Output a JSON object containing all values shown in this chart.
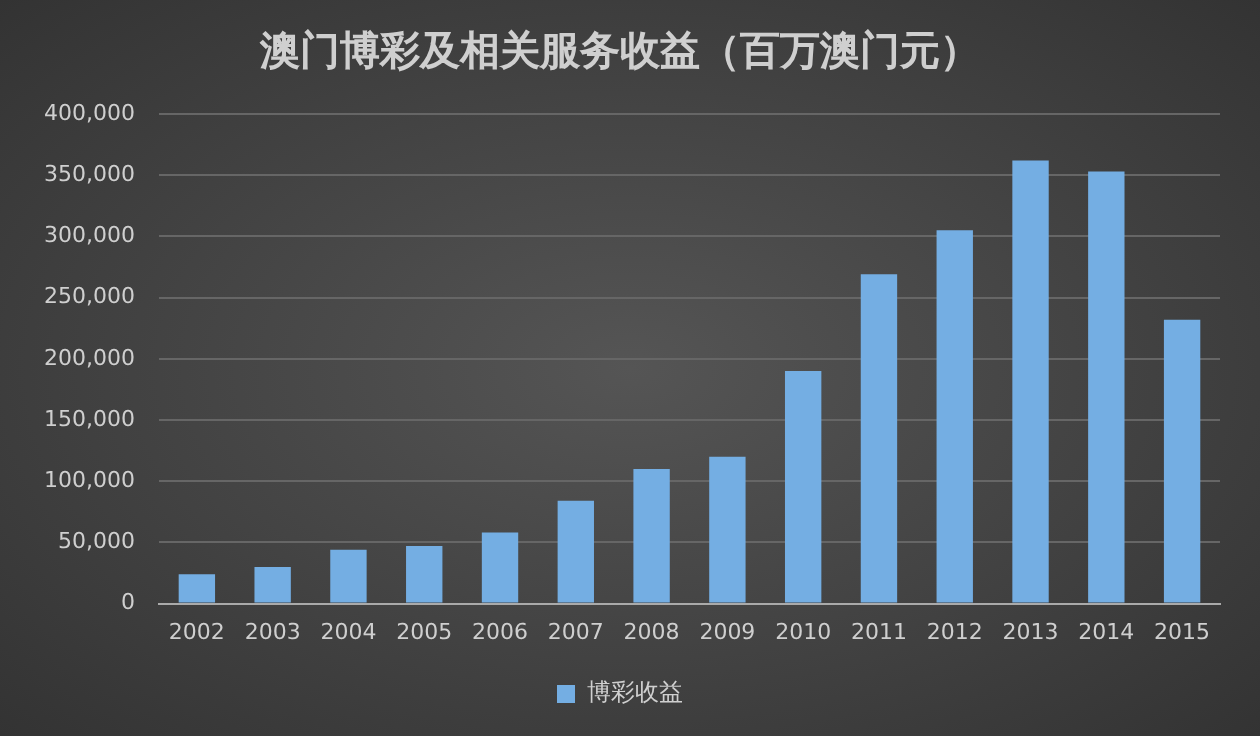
{
  "chart_data": {
    "type": "bar",
    "title": "澳门博彩及相关服务收益（百万澳门元）",
    "categories": [
      "2002",
      "2003",
      "2004",
      "2005",
      "2006",
      "2007",
      "2008",
      "2009",
      "2010",
      "2011",
      "2012",
      "2013",
      "2014",
      "2015"
    ],
    "series": [
      {
        "name": "博彩收益",
        "color": "#74aee3",
        "values": [
          24000,
          30000,
          44000,
          47000,
          58000,
          84000,
          110000,
          120000,
          190000,
          269000,
          305000,
          362000,
          353000,
          232000
        ]
      }
    ],
    "ylim": [
      0,
      400000
    ],
    "yticks": [
      {
        "value": 0,
        "label": "0"
      },
      {
        "value": 50000,
        "label": "50,000"
      },
      {
        "value": 100000,
        "label": "100,000"
      },
      {
        "value": 150000,
        "label": "150,000"
      },
      {
        "value": 200000,
        "label": "200,000"
      },
      {
        "value": 250000,
        "label": "250,000"
      },
      {
        "value": 300000,
        "label": "300,000"
      },
      {
        "value": 350000,
        "label": "350,000"
      },
      {
        "value": 400000,
        "label": "400,000"
      }
    ],
    "grid": "y",
    "legend": "bottom"
  }
}
